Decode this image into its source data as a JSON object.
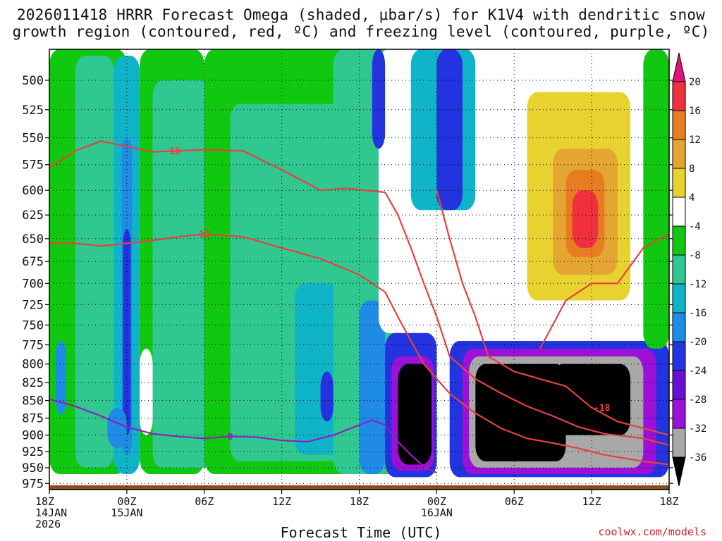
{
  "chart_data": {
    "type": "heatmap",
    "title_line1": "2026011418 HRRR Forecast Omega (shaded, μbar/s) for K1V4 with dendritic snow",
    "title_line2": "growth region (contoured, red, ºC) and freezing level (contoured, purple, ºC)",
    "xlabel": "Forecast Time (UTC)",
    "credit": "coolwx.com/models",
    "x_range_hours": [
      0,
      48
    ],
    "x_ticks": [
      {
        "h": 0,
        "l1": "18Z",
        "l2": "14JAN",
        "l3": "2026"
      },
      {
        "h": 6,
        "l1": "00Z",
        "l2": "15JAN",
        "l3": ""
      },
      {
        "h": 12,
        "l1": "06Z",
        "l2": "",
        "l3": ""
      },
      {
        "h": 18,
        "l1": "12Z",
        "l2": "",
        "l3": ""
      },
      {
        "h": 24,
        "l1": "18Z",
        "l2": "",
        "l3": ""
      },
      {
        "h": 30,
        "l1": "00Z",
        "l2": "16JAN",
        "l3": ""
      },
      {
        "h": 36,
        "l1": "06Z",
        "l2": "",
        "l3": ""
      },
      {
        "h": 42,
        "l1": "12Z",
        "l2": "",
        "l3": ""
      },
      {
        "h": 48,
        "l1": "18Z",
        "l2": "",
        "l3": ""
      }
    ],
    "y_ticks": [
      500,
      525,
      550,
      575,
      600,
      625,
      650,
      675,
      700,
      725,
      750,
      775,
      800,
      825,
      850,
      875,
      900,
      925,
      950,
      975
    ],
    "y_range_hpa": [
      475,
      985
    ],
    "y_scale": "log-pressure",
    "grid": true,
    "colorbar": {
      "labels": [
        20,
        16,
        12,
        8,
        4,
        -4,
        -8,
        -12,
        -16,
        -20,
        -24,
        -28,
        -32,
        -36
      ],
      "colors": [
        "#e0157a",
        "#f0303f",
        "#e87c22",
        "#e5a532",
        "#e8d230",
        "#ffffff",
        "#10c810",
        "#30c890",
        "#10b4c8",
        "#1e8ce6",
        "#2433e0",
        "#6a10d0",
        "#9c10d8",
        "#a8a8a8",
        "#000000"
      ]
    },
    "omega_cells": [
      {
        "t0": 0,
        "t1": 6,
        "p0": 475,
        "p1": 960,
        "omega": -6
      },
      {
        "t0": 2,
        "t1": 5,
        "p0": 480,
        "p1": 950,
        "omega": -10
      },
      {
        "t0": 5,
        "t1": 7,
        "p0": 480,
        "p1": 960,
        "omega": -13
      },
      {
        "t0": 5.6,
        "t1": 6.4,
        "p0": 550,
        "p1": 930,
        "omega": -18
      },
      {
        "t0": 5.7,
        "t1": 6.3,
        "p0": 640,
        "p1": 900,
        "omega": -22
      },
      {
        "t0": 0.5,
        "t1": 1.3,
        "p0": 770,
        "p1": 870,
        "omega": -20
      },
      {
        "t0": 4.5,
        "t1": 6.0,
        "p0": 860,
        "p1": 920,
        "omega": -20
      },
      {
        "t0": 7,
        "t1": 12,
        "p0": 475,
        "p1": 960,
        "omega": -7
      },
      {
        "t0": 7,
        "t1": 8,
        "p0": 780,
        "p1": 900,
        "omega": -2
      },
      {
        "t0": 8,
        "t1": 16,
        "p0": 500,
        "p1": 950,
        "omega": -10
      },
      {
        "t0": 12,
        "t1": 24,
        "p0": 475,
        "p1": 960,
        "omega": -7
      },
      {
        "t0": 14,
        "t1": 24,
        "p0": 520,
        "p1": 940,
        "omega": -11
      },
      {
        "t0": 19,
        "t1": 23,
        "p0": 700,
        "p1": 930,
        "omega": -14
      },
      {
        "t0": 21,
        "t1": 22,
        "p0": 810,
        "p1": 880,
        "omega": -22
      },
      {
        "t0": 22,
        "t1": 27,
        "p0": 475,
        "p1": 960,
        "omega": -12
      },
      {
        "t0": 24,
        "t1": 26,
        "p0": 720,
        "p1": 960,
        "omega": -18
      },
      {
        "t0": 25.5,
        "t1": 28,
        "p0": 475,
        "p1": 760,
        "omega": -2
      },
      {
        "t0": 25,
        "t1": 26,
        "p0": 475,
        "p1": 560,
        "omega": -22
      },
      {
        "t0": 26,
        "t1": 30,
        "p0": 760,
        "p1": 965,
        "omega": -22
      },
      {
        "t0": 26.5,
        "t1": 29.8,
        "p0": 790,
        "p1": 955,
        "omega": -30
      },
      {
        "t0": 27,
        "t1": 29.6,
        "p0": 800,
        "p1": 945,
        "omega": -40
      },
      {
        "t0": 28,
        "t1": 33,
        "p0": 475,
        "p1": 620,
        "omega": -13
      },
      {
        "t0": 30,
        "t1": 32,
        "p0": 475,
        "p1": 620,
        "omega": -22
      },
      {
        "t0": 31,
        "t1": 48,
        "p0": 770,
        "p1": 965,
        "omega": -22
      },
      {
        "t0": 32,
        "t1": 47,
        "p0": 780,
        "p1": 960,
        "omega": -30
      },
      {
        "t0": 32.5,
        "t1": 46,
        "p0": 790,
        "p1": 950,
        "omega": -34
      },
      {
        "t0": 33,
        "t1": 40,
        "p0": 800,
        "p1": 940,
        "omega": -40
      },
      {
        "t0": 39,
        "t1": 45,
        "p0": 800,
        "p1": 900,
        "omega": -40
      },
      {
        "t0": 33,
        "t1": 40,
        "p0": 475,
        "p1": 720,
        "omega": -2
      },
      {
        "t0": 37,
        "t1": 45,
        "p0": 510,
        "p1": 720,
        "omega": 6
      },
      {
        "t0": 39,
        "t1": 44,
        "p0": 560,
        "p1": 690,
        "omega": 10
      },
      {
        "t0": 40,
        "t1": 43,
        "p0": 580,
        "p1": 670,
        "omega": 14
      },
      {
        "t0": 40.5,
        "t1": 42.5,
        "p0": 600,
        "p1": 660,
        "omega": 18
      },
      {
        "t0": 46,
        "t1": 48,
        "p0": 475,
        "p1": 780,
        "omega": -7
      }
    ],
    "contours": [
      {
        "name": "-18",
        "color": "#e84040",
        "label_at": 9.5,
        "points": [
          [
            0,
            578
          ],
          [
            2,
            562
          ],
          [
            4,
            553
          ],
          [
            6,
            558
          ],
          [
            8,
            563
          ],
          [
            10,
            562
          ],
          [
            12,
            561
          ],
          [
            15,
            562
          ],
          [
            18,
            580
          ],
          [
            21,
            600
          ],
          [
            23,
            598
          ],
          [
            26,
            602
          ],
          [
            27,
            625
          ],
          [
            28,
            660
          ],
          [
            29,
            700
          ],
          [
            30,
            740
          ],
          [
            31,
            790
          ],
          [
            33,
            820
          ],
          [
            35,
            840
          ],
          [
            37,
            858
          ],
          [
            39,
            872
          ],
          [
            41,
            888
          ],
          [
            43,
            898
          ],
          [
            46,
            905
          ],
          [
            48,
            915
          ]
        ]
      },
      {
        "name": "-12",
        "color": "#e84040",
        "label_at": 11.8,
        "points": [
          [
            0,
            655
          ],
          [
            2,
            655
          ],
          [
            4,
            658
          ],
          [
            6,
            655
          ],
          [
            8,
            652
          ],
          [
            10,
            648
          ],
          [
            12,
            645
          ],
          [
            15,
            648
          ],
          [
            18,
            660
          ],
          [
            21,
            672
          ],
          [
            24,
            690
          ],
          [
            26,
            710
          ],
          [
            27,
            740
          ],
          [
            28,
            770
          ],
          [
            29,
            800
          ],
          [
            30,
            820
          ],
          [
            31,
            840
          ],
          [
            33,
            868
          ],
          [
            35,
            890
          ],
          [
            37,
            905
          ],
          [
            39,
            912
          ],
          [
            41,
            920
          ],
          [
            43,
            930
          ],
          [
            46,
            940
          ],
          [
            48,
            945
          ]
        ]
      },
      {
        "name": "-18",
        "color": "#e84040",
        "label_at": 42.8,
        "points": [
          [
            30,
            600
          ],
          [
            31,
            650
          ],
          [
            32,
            700
          ],
          [
            33,
            740
          ],
          [
            34,
            790
          ],
          [
            36,
            810
          ],
          [
            38,
            820
          ],
          [
            40,
            830
          ],
          [
            42,
            860
          ],
          [
            44,
            880
          ],
          [
            46,
            890
          ],
          [
            48,
            900
          ]
        ]
      },
      {
        "name": "-12",
        "color": "#e84040",
        "label_at": -1,
        "points": [
          [
            38,
            780
          ],
          [
            40,
            720
          ],
          [
            42,
            700
          ],
          [
            44,
            700
          ],
          [
            46,
            660
          ],
          [
            48,
            645
          ]
        ]
      },
      {
        "name": "0",
        "color": "#9020c0",
        "label_at": 14,
        "points": [
          [
            0,
            848
          ],
          [
            2,
            858
          ],
          [
            4,
            872
          ],
          [
            6,
            888
          ],
          [
            8,
            898
          ],
          [
            10,
            902
          ],
          [
            12,
            905
          ],
          [
            14,
            902
          ],
          [
            16,
            903
          ],
          [
            18,
            908
          ],
          [
            20,
            910
          ],
          [
            22,
            900
          ],
          [
            24,
            885
          ],
          [
            25,
            878
          ],
          [
            26,
            885
          ],
          [
            27,
            910
          ],
          [
            28,
            930
          ],
          [
            29,
            948
          ],
          [
            30,
            958
          ]
        ]
      }
    ],
    "terrain_top_hpa": 978
  }
}
